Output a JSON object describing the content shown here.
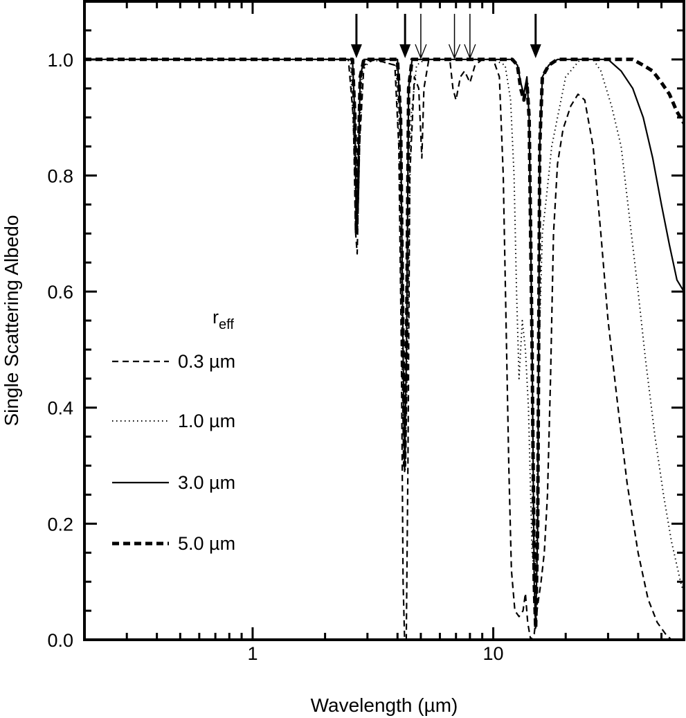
{
  "chart_data": {
    "type": "line",
    "title": "",
    "xlabel": "Wavelength (µm)",
    "ylabel": "Single Scattering Albedo",
    "xscale": "log",
    "xlim": [
      0.2,
      62
    ],
    "ylim": [
      0.0,
      1.1
    ],
    "x_ticks": [
      {
        "value": 1,
        "label": "1"
      },
      {
        "value": 10,
        "label": "10"
      }
    ],
    "x_minor_ticks": [
      0.3,
      0.4,
      0.5,
      0.6,
      0.7,
      0.8,
      0.9,
      2,
      3,
      4,
      5,
      6,
      7,
      8,
      9,
      20,
      30,
      40,
      50
    ],
    "y_ticks": [
      {
        "value": 0.0,
        "label": "0.0"
      },
      {
        "value": 0.2,
        "label": "0.2"
      },
      {
        "value": 0.4,
        "label": "0.4"
      },
      {
        "value": 0.6,
        "label": "0.6"
      },
      {
        "value": 0.8,
        "label": "0.8"
      },
      {
        "value": 1.0,
        "label": "1.0"
      }
    ],
    "y_minor_step": 0.05,
    "grid": false,
    "legend": {
      "title": "r",
      "title_subscript": "eff",
      "position": "inside-left",
      "entries": [
        {
          "label": "0.3 µm",
          "style": "dashed"
        },
        {
          "label": "1.0 µm",
          "style": "dotted"
        },
        {
          "label": "3.0 µm",
          "style": "solid"
        },
        {
          "label": "5.0 µm",
          "style": "thick-dashed"
        }
      ]
    },
    "annotations": {
      "absorption_arrows": [
        {
          "x": 2.7,
          "style": "filled"
        },
        {
          "x": 4.3,
          "style": "filled"
        },
        {
          "x": 5.0,
          "style": "open"
        },
        {
          "x": 6.9,
          "style": "open"
        },
        {
          "x": 8.0,
          "style": "open"
        },
        {
          "x": 15.0,
          "style": "filled"
        }
      ]
    },
    "series": [
      {
        "name": "0.3 µm",
        "style": "dashed",
        "points": [
          [
            0.2,
            1.0
          ],
          [
            2.5,
            1.0
          ],
          [
            2.62,
            0.9
          ],
          [
            2.68,
            0.7
          ],
          [
            2.72,
            0.665
          ],
          [
            2.78,
            0.85
          ],
          [
            2.9,
            0.99
          ],
          [
            3.2,
            1.0
          ],
          [
            3.9,
            0.99
          ],
          [
            4.05,
            0.85
          ],
          [
            4.15,
            0.5
          ],
          [
            4.22,
            0.1
          ],
          [
            4.28,
            0.0
          ],
          [
            4.35,
            0.0
          ],
          [
            4.42,
            0.3
          ],
          [
            4.5,
            0.8
          ],
          [
            4.7,
            0.97
          ],
          [
            4.9,
            0.95
          ],
          [
            5.05,
            0.83
          ],
          [
            5.15,
            0.95
          ],
          [
            5.4,
            1.0
          ],
          [
            6.6,
            1.0
          ],
          [
            6.8,
            0.95
          ],
          [
            7.0,
            0.93
          ],
          [
            7.3,
            0.97
          ],
          [
            7.6,
            0.98
          ],
          [
            8.0,
            0.96
          ],
          [
            8.4,
            0.99
          ],
          [
            9.0,
            1.0
          ],
          [
            10.0,
            1.0
          ],
          [
            10.6,
            0.97
          ],
          [
            11.0,
            0.8
          ],
          [
            11.3,
            0.55
          ],
          [
            11.6,
            0.3
          ],
          [
            11.9,
            0.12
          ],
          [
            12.3,
            0.05
          ],
          [
            12.8,
            0.04
          ],
          [
            13.3,
            0.05
          ],
          [
            13.6,
            0.08
          ],
          [
            13.9,
            0.03
          ],
          [
            14.3,
            0.0
          ],
          [
            14.8,
            0.01
          ],
          [
            15.3,
            0.06
          ],
          [
            15.8,
            0.1
          ],
          [
            16.3,
            0.15
          ],
          [
            16.8,
            0.25
          ],
          [
            17.3,
            0.45
          ],
          [
            17.8,
            0.7
          ],
          [
            18.5,
            0.82
          ],
          [
            19.5,
            0.88
          ],
          [
            21,
            0.92
          ],
          [
            22.5,
            0.94
          ],
          [
            24,
            0.93
          ],
          [
            26,
            0.85
          ],
          [
            28,
            0.7
          ],
          [
            30,
            0.55
          ],
          [
            33,
            0.4
          ],
          [
            36,
            0.27
          ],
          [
            40,
            0.15
          ],
          [
            44,
            0.07
          ],
          [
            48,
            0.03
          ],
          [
            52,
            0.01
          ],
          [
            55,
            0.0
          ],
          [
            62,
            0.0
          ]
        ]
      },
      {
        "name": "1.0 µm",
        "style": "dotted",
        "points": [
          [
            0.2,
            1.0
          ],
          [
            2.55,
            1.0
          ],
          [
            2.64,
            0.85
          ],
          [
            2.7,
            0.7
          ],
          [
            2.76,
            0.8
          ],
          [
            2.85,
            0.98
          ],
          [
            3.1,
            1.0
          ],
          [
            3.95,
            0.99
          ],
          [
            4.1,
            0.8
          ],
          [
            4.2,
            0.4
          ],
          [
            4.3,
            0.29
          ],
          [
            4.4,
            0.5
          ],
          [
            4.55,
            0.9
          ],
          [
            4.8,
            0.99
          ],
          [
            5.2,
            1.0
          ],
          [
            10.0,
            1.0
          ],
          [
            11.2,
            0.99
          ],
          [
            11.8,
            0.93
          ],
          [
            12.2,
            0.8
          ],
          [
            12.5,
            0.6
          ],
          [
            12.8,
            0.45
          ],
          [
            13.2,
            0.55
          ],
          [
            13.6,
            0.5
          ],
          [
            14.0,
            0.4
          ],
          [
            14.5,
            0.15
          ],
          [
            15.0,
            0.1
          ],
          [
            15.5,
            0.5
          ],
          [
            16.0,
            0.7
          ],
          [
            16.5,
            0.75
          ],
          [
            17.0,
            0.8
          ],
          [
            17.5,
            0.85
          ],
          [
            18.5,
            0.9
          ],
          [
            20,
            0.97
          ],
          [
            23,
            1.0
          ],
          [
            26,
            1.0
          ],
          [
            28,
            0.98
          ],
          [
            31,
            0.92
          ],
          [
            34,
            0.85
          ],
          [
            37,
            0.72
          ],
          [
            40,
            0.6
          ],
          [
            43,
            0.48
          ],
          [
            47,
            0.35
          ],
          [
            51,
            0.25
          ],
          [
            55,
            0.17
          ],
          [
            60,
            0.1
          ],
          [
            62,
            0.08
          ]
        ]
      },
      {
        "name": "3.0 µm",
        "style": "solid",
        "points": [
          [
            0.2,
            1.0
          ],
          [
            2.6,
            1.0
          ],
          [
            2.66,
            0.9
          ],
          [
            2.7,
            0.7
          ],
          [
            2.74,
            0.8
          ],
          [
            2.8,
            0.97
          ],
          [
            2.9,
            1.0
          ],
          [
            4.0,
            1.0
          ],
          [
            4.12,
            0.9
          ],
          [
            4.22,
            0.5
          ],
          [
            4.28,
            0.29
          ],
          [
            4.36,
            0.5
          ],
          [
            4.45,
            0.95
          ],
          [
            4.6,
            1.0
          ],
          [
            12.0,
            1.0
          ],
          [
            12.6,
            0.99
          ],
          [
            13.0,
            0.96
          ],
          [
            13.4,
            0.94
          ],
          [
            13.8,
            0.97
          ],
          [
            14.1,
            0.9
          ],
          [
            14.5,
            0.5
          ],
          [
            14.8,
            0.1
          ],
          [
            15.0,
            0.02
          ],
          [
            15.3,
            0.2
          ],
          [
            15.6,
            0.85
          ],
          [
            16.0,
            0.97
          ],
          [
            17.0,
            0.99
          ],
          [
            18.5,
            1.0
          ],
          [
            30,
            1.0
          ],
          [
            34,
            0.98
          ],
          [
            38,
            0.95
          ],
          [
            42,
            0.9
          ],
          [
            46,
            0.83
          ],
          [
            50,
            0.75
          ],
          [
            54,
            0.68
          ],
          [
            58,
            0.62
          ],
          [
            62,
            0.6
          ]
        ]
      },
      {
        "name": "5.0 µm",
        "style": "thick-dashed",
        "points": [
          [
            0.2,
            1.0
          ],
          [
            2.6,
            1.0
          ],
          [
            2.66,
            0.9
          ],
          [
            2.7,
            0.7
          ],
          [
            2.74,
            0.8
          ],
          [
            2.8,
            0.97
          ],
          [
            2.9,
            1.0
          ],
          [
            4.0,
            1.0
          ],
          [
            4.12,
            0.9
          ],
          [
            4.22,
            0.5
          ],
          [
            4.28,
            0.3
          ],
          [
            4.36,
            0.5
          ],
          [
            4.45,
            0.95
          ],
          [
            4.6,
            1.0
          ],
          [
            12.0,
            1.0
          ],
          [
            12.6,
            0.99
          ],
          [
            13.0,
            0.95
          ],
          [
            13.4,
            0.93
          ],
          [
            13.8,
            0.96
          ],
          [
            14.1,
            0.9
          ],
          [
            14.5,
            0.5
          ],
          [
            14.8,
            0.1
          ],
          [
            15.0,
            0.02
          ],
          [
            15.3,
            0.2
          ],
          [
            15.6,
            0.85
          ],
          [
            16.0,
            0.97
          ],
          [
            17.0,
            0.99
          ],
          [
            18.5,
            1.0
          ],
          [
            38,
            1.0
          ],
          [
            42,
            0.99
          ],
          [
            46,
            0.98
          ],
          [
            50,
            0.96
          ],
          [
            54,
            0.94
          ],
          [
            58,
            0.91
          ],
          [
            62,
            0.89
          ]
        ]
      }
    ]
  }
}
